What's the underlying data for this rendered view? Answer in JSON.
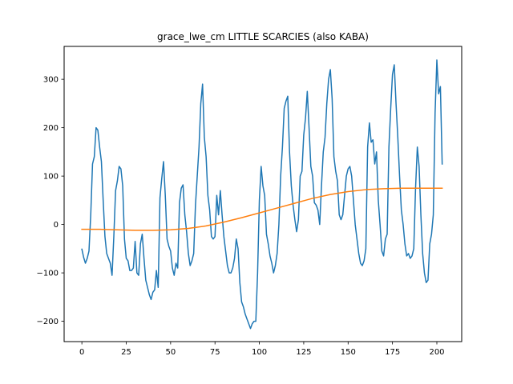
{
  "chart_data": {
    "type": "line",
    "title": "grace_lwe_cm LITTLE SCARCIES (also KABA)",
    "xlabel": "",
    "ylabel": "",
    "xlim": [
      -10,
      214
    ],
    "ylim": [
      -242,
      368
    ],
    "xticks": [
      0,
      25,
      50,
      75,
      100,
      125,
      150,
      175,
      200
    ],
    "yticks": [
      -200,
      -100,
      0,
      100,
      200,
      300
    ],
    "grid": false,
    "legend": "none",
    "series": [
      {
        "color": "#1f77b4",
        "x": [
          0,
          1,
          2,
          3,
          4,
          5,
          6,
          7,
          8,
          9,
          10,
          11,
          12,
          13,
          14,
          15,
          16,
          17,
          18,
          19,
          20,
          21,
          22,
          23,
          24,
          25,
          26,
          27,
          28,
          29,
          30,
          31,
          32,
          33,
          34,
          35,
          36,
          37,
          38,
          39,
          40,
          41,
          42,
          43,
          44,
          45,
          46,
          47,
          48,
          49,
          50,
          51,
          52,
          53,
          54,
          55,
          56,
          57,
          58,
          59,
          60,
          61,
          62,
          63,
          64,
          65,
          66,
          67,
          68,
          69,
          70,
          71,
          72,
          73,
          74,
          75,
          76,
          77,
          78,
          79,
          80,
          81,
          82,
          83,
          84,
          85,
          86,
          87,
          88,
          89,
          90,
          91,
          92,
          93,
          94,
          95,
          96,
          97,
          98,
          99,
          100,
          101,
          102,
          103,
          104,
          105,
          106,
          107,
          108,
          109,
          110,
          111,
          112,
          113,
          114,
          115,
          116,
          117,
          118,
          119,
          120,
          121,
          122,
          123,
          124,
          125,
          126,
          127,
          128,
          129,
          130,
          131,
          132,
          133,
          134,
          135,
          136,
          137,
          138,
          139,
          140,
          141,
          142,
          143,
          144,
          145,
          146,
          147,
          148,
          149,
          150,
          151,
          152,
          153,
          154,
          155,
          156,
          157,
          158,
          159,
          160,
          161,
          162,
          163,
          164,
          165,
          166,
          167,
          168,
          169,
          170,
          171,
          172,
          173,
          174,
          175,
          176,
          177,
          178,
          179,
          180,
          181,
          182,
          183,
          184,
          185,
          186,
          187,
          188,
          189,
          190,
          191,
          192,
          193,
          194,
          195,
          196,
          197,
          198,
          199,
          200,
          201,
          202,
          203
        ],
        "values": [
          -51,
          -68,
          -80,
          -70,
          -55,
          20,
          125,
          140,
          200,
          195,
          160,
          130,
          50,
          -25,
          -60,
          -70,
          -80,
          -105,
          -25,
          70,
          90,
          120,
          115,
          80,
          -30,
          -70,
          -75,
          -95,
          -95,
          -90,
          -35,
          -100,
          -105,
          -40,
          -20,
          -70,
          -115,
          -130,
          -145,
          -155,
          -140,
          -135,
          -95,
          -130,
          55,
          95,
          130,
          60,
          -30,
          -45,
          -55,
          -90,
          -105,
          -80,
          -90,
          45,
          75,
          82,
          20,
          -15,
          -60,
          -85,
          -75,
          -60,
          40,
          100,
          160,
          250,
          290,
          180,
          140,
          60,
          30,
          -25,
          -30,
          -25,
          60,
          20,
          70,
          20,
          -25,
          -55,
          -85,
          -100,
          -100,
          -90,
          -70,
          -30,
          -50,
          -120,
          -160,
          -170,
          -185,
          -195,
          -205,
          -215,
          -205,
          -200,
          -200,
          -100,
          50,
          120,
          80,
          60,
          -20,
          -40,
          -65,
          -80,
          -100,
          -85,
          -60,
          0,
          100,
          160,
          240,
          255,
          265,
          150,
          80,
          40,
          10,
          -15,
          10,
          100,
          110,
          185,
          220,
          275,
          200,
          120,
          100,
          45,
          40,
          30,
          0,
          80,
          150,
          180,
          250,
          300,
          320,
          260,
          140,
          110,
          90,
          20,
          10,
          20,
          60,
          100,
          115,
          120,
          100,
          50,
          0,
          -30,
          -60,
          -80,
          -85,
          -75,
          -50,
          160,
          210,
          170,
          175,
          125,
          150,
          50,
          0,
          -55,
          -65,
          -30,
          -20,
          160,
          240,
          310,
          330,
          250,
          180,
          100,
          30,
          0,
          -40,
          -65,
          -60,
          -70,
          -65,
          -50,
          75,
          160,
          120,
          20,
          -60,
          -100,
          -120,
          -115,
          -40,
          -20,
          20,
          230,
          340,
          270,
          285,
          125
        ]
      },
      {
        "color": "#ff7f0e",
        "x": [
          0,
          10,
          20,
          30,
          40,
          50,
          60,
          70,
          80,
          90,
          100,
          110,
          120,
          130,
          140,
          150,
          160,
          170,
          180,
          190,
          200,
          203
        ],
        "values": [
          -10,
          -10,
          -11,
          -12,
          -12,
          -11,
          -8,
          -3,
          5,
          14,
          24,
          34,
          44,
          54,
          62,
          68,
          72,
          74,
          75,
          75,
          75,
          75
        ]
      }
    ]
  }
}
